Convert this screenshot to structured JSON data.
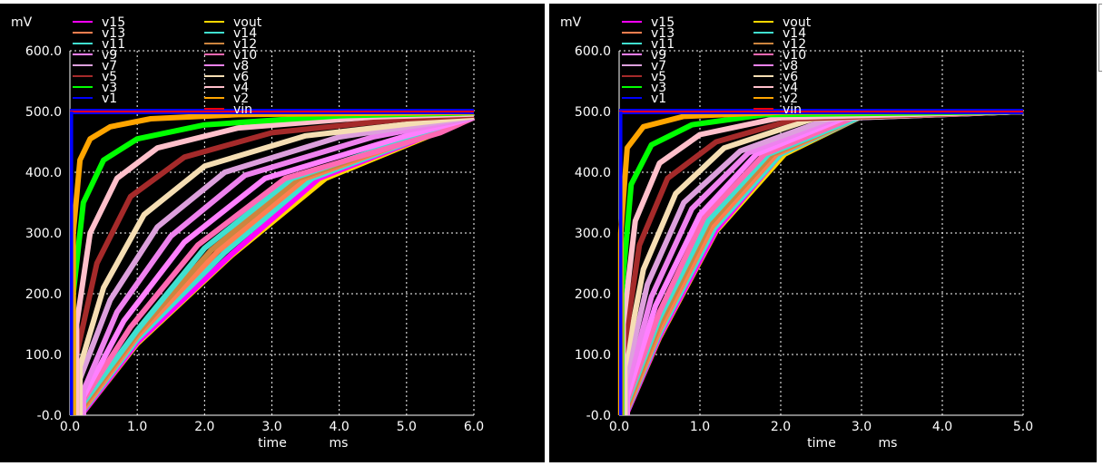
{
  "chart_data": [
    {
      "type": "line",
      "ylabel_unit": "mV",
      "xlabel": "time",
      "xunit": "ms",
      "xlim": [
        0,
        6
      ],
      "ylim": [
        0,
        600
      ],
      "xticks": [
        "0.0",
        "1.0",
        "2.0",
        "3.0",
        "4.0",
        "5.0",
        "6.0"
      ],
      "yticks": [
        "-0.0",
        "100.0",
        "200.0",
        "300.0",
        "400.0",
        "500.0",
        "600.0"
      ],
      "grid": true,
      "legend_position": "top",
      "series": [
        {
          "name": "vin",
          "values": [
            [
              0,
              500
            ],
            [
              6,
              500
            ]
          ]
        },
        {
          "name": "v1",
          "values": [
            [
              0.0,
              500
            ],
            [
              6.0,
              500
            ]
          ]
        },
        {
          "name": "v2",
          "values": [
            [
              0.05,
              300
            ],
            [
              0.15,
              420
            ],
            [
              0.3,
              455
            ],
            [
              0.6,
              475
            ],
            [
              1.2,
              488
            ],
            [
              2.5,
              495
            ],
            [
              6.0,
              499
            ]
          ]
        },
        {
          "name": "v3",
          "values": [
            [
              0.05,
              200
            ],
            [
              0.2,
              350
            ],
            [
              0.5,
              420
            ],
            [
              1.0,
              455
            ],
            [
              2.0,
              478
            ],
            [
              4.0,
              493
            ],
            [
              6.0,
              498
            ]
          ]
        },
        {
          "name": "v4",
          "values": [
            [
              0.1,
              150
            ],
            [
              0.3,
              300
            ],
            [
              0.7,
              390
            ],
            [
              1.3,
              440
            ],
            [
              2.5,
              473
            ],
            [
              4.5,
              491
            ],
            [
              6.0,
              496
            ]
          ]
        },
        {
          "name": "v5",
          "values": [
            [
              0.1,
              100
            ],
            [
              0.4,
              250
            ],
            [
              0.9,
              360
            ],
            [
              1.7,
              425
            ],
            [
              3.0,
              465
            ],
            [
              5.0,
              488
            ],
            [
              6.0,
              494
            ]
          ]
        },
        {
          "name": "v6",
          "values": [
            [
              0.15,
              80
            ],
            [
              0.5,
              210
            ],
            [
              1.1,
              330
            ],
            [
              2.0,
              410
            ],
            [
              3.5,
              460
            ],
            [
              6.0,
              492
            ]
          ]
        },
        {
          "name": "v7",
          "values": [
            [
              0.15,
              60
            ],
            [
              0.6,
              190
            ],
            [
              1.3,
              310
            ],
            [
              2.3,
              400
            ],
            [
              4.0,
              458
            ],
            [
              6.0,
              491
            ]
          ]
        },
        {
          "name": "v8",
          "values": [
            [
              0.2,
              40
            ],
            [
              0.7,
              170
            ],
            [
              1.5,
              295
            ],
            [
              2.6,
              395
            ],
            [
              4.5,
              458
            ],
            [
              6.0,
              490
            ]
          ]
        },
        {
          "name": "v9",
          "values": [
            [
              0.2,
              30
            ],
            [
              0.8,
              155
            ],
            [
              1.7,
              285
            ],
            [
              2.9,
              390
            ],
            [
              5.0,
              460
            ],
            [
              6.0,
              490
            ]
          ]
        },
        {
          "name": "v10",
          "values": [
            [
              0.2,
              25
            ],
            [
              0.9,
              145
            ],
            [
              1.9,
              280
            ],
            [
              3.2,
              390
            ],
            [
              5.5,
              465
            ],
            [
              6.0,
              490
            ]
          ]
        },
        {
          "name": "v11",
          "values": [
            [
              0.2,
              20
            ],
            [
              1.0,
              140
            ],
            [
              2.0,
              275
            ],
            [
              3.3,
              390
            ],
            [
              6.0,
              490
            ]
          ]
        },
        {
          "name": "v12",
          "values": [
            [
              0.2,
              15
            ],
            [
              1.0,
              135
            ],
            [
              2.1,
              272
            ],
            [
              3.4,
              390
            ],
            [
              6.0,
              490
            ]
          ]
        },
        {
          "name": "v13",
          "values": [
            [
              0.2,
              10
            ],
            [
              1.0,
              130
            ],
            [
              2.2,
              270
            ],
            [
              3.5,
              390
            ],
            [
              6.0,
              490
            ]
          ]
        },
        {
          "name": "v14",
          "values": [
            [
              0.2,
              8
            ],
            [
              1.0,
              125
            ],
            [
              2.3,
              268
            ],
            [
              3.6,
              390
            ],
            [
              6.0,
              490
            ]
          ]
        },
        {
          "name": "v15",
          "values": [
            [
              0.2,
              5
            ],
            [
              1.0,
              120
            ],
            [
              2.4,
              265
            ],
            [
              3.7,
              390
            ],
            [
              6.0,
              490
            ]
          ]
        },
        {
          "name": "vout",
          "values": [
            [
              0.2,
              5
            ],
            [
              1.0,
              118
            ],
            [
              2.4,
              263
            ],
            [
              3.8,
              390
            ],
            [
              6.0,
              490
            ]
          ]
        }
      ],
      "colors": {
        "v15": "#ff00ff",
        "vout": "#ffd700",
        "v13": "#ff7f50",
        "v14": "#40e0d0",
        "v11": "#40e0d0",
        "v12": "#cd853f",
        "v9": "#ff80ff",
        "v10": "#ff69b4",
        "v7": "#dda0dd",
        "v8": "#ee82ee",
        "v5": "#a52a2a",
        "v6": "#f5deb3",
        "v3": "#00ff00",
        "v4": "#ffc0cb",
        "v1": "#0000ff",
        "v2": "#ffa500",
        "vin": "#ff0000"
      }
    },
    {
      "type": "line",
      "ylabel_unit": "mV",
      "xlabel": "time",
      "xunit": "ms",
      "xlim": [
        0,
        5
      ],
      "ylim": [
        0,
        600
      ],
      "xticks": [
        "0.0",
        "1.0",
        "2.0",
        "3.0",
        "4.0",
        "5.0"
      ],
      "yticks": [
        "-0.0",
        "100.0",
        "200.0",
        "300.0",
        "400.0",
        "500.0",
        "600.0"
      ],
      "grid": true,
      "legend_position": "top",
      "series": [
        {
          "name": "vin",
          "values": [
            [
              0,
              500
            ],
            [
              5,
              500
            ]
          ]
        },
        {
          "name": "v1",
          "values": [
            [
              0.0,
              500
            ],
            [
              5.0,
              500
            ]
          ]
        },
        {
          "name": "v2",
          "values": [
            [
              0.02,
              300
            ],
            [
              0.1,
              440
            ],
            [
              0.3,
              475
            ],
            [
              0.8,
              492
            ],
            [
              2.0,
              499
            ],
            [
              5.0,
              500
            ]
          ]
        },
        {
          "name": "v3",
          "values": [
            [
              0.03,
              200
            ],
            [
              0.15,
              380
            ],
            [
              0.4,
              445
            ],
            [
              0.9,
              478
            ],
            [
              1.8,
              495
            ],
            [
              5.0,
              500
            ]
          ]
        },
        {
          "name": "v4",
          "values": [
            [
              0.05,
              150
            ],
            [
              0.2,
              320
            ],
            [
              0.5,
              415
            ],
            [
              1.0,
              462
            ],
            [
              2.0,
              490
            ],
            [
              5.0,
              500
            ]
          ]
        },
        {
          "name": "v5",
          "values": [
            [
              0.05,
              100
            ],
            [
              0.25,
              280
            ],
            [
              0.6,
              390
            ],
            [
              1.2,
              450
            ],
            [
              2.2,
              488
            ],
            [
              5.0,
              500
            ]
          ]
        },
        {
          "name": "v6",
          "values": [
            [
              0.07,
              80
            ],
            [
              0.3,
              240
            ],
            [
              0.7,
              365
            ],
            [
              1.3,
              440
            ],
            [
              2.4,
              488
            ],
            [
              5.0,
              500
            ]
          ]
        },
        {
          "name": "v7",
          "values": [
            [
              0.08,
              60
            ],
            [
              0.35,
              215
            ],
            [
              0.8,
              350
            ],
            [
              1.5,
              435
            ],
            [
              2.6,
              488
            ],
            [
              5.0,
              500
            ]
          ]
        },
        {
          "name": "v8",
          "values": [
            [
              0.09,
              40
            ],
            [
              0.4,
              195
            ],
            [
              0.9,
              340
            ],
            [
              1.6,
              432
            ],
            [
              2.7,
              489
            ],
            [
              5.0,
              500
            ]
          ]
        },
        {
          "name": "v9",
          "values": [
            [
              0.1,
              30
            ],
            [
              0.45,
              180
            ],
            [
              1.0,
              330
            ],
            [
              1.7,
              430
            ],
            [
              2.8,
              490
            ],
            [
              5.0,
              500
            ]
          ]
        },
        {
          "name": "v10",
          "values": [
            [
              0.1,
              25
            ],
            [
              0.5,
              170
            ],
            [
              1.05,
              325
            ],
            [
              1.8,
              430
            ],
            [
              2.9,
              490
            ],
            [
              5.0,
              500
            ]
          ]
        },
        {
          "name": "v11",
          "values": [
            [
              0.1,
              20
            ],
            [
              0.5,
              160
            ],
            [
              1.1,
              320
            ],
            [
              1.85,
              430
            ],
            [
              3.0,
              492
            ],
            [
              5.0,
              500
            ]
          ]
        },
        {
          "name": "v12",
          "values": [
            [
              0.1,
              15
            ],
            [
              0.5,
              150
            ],
            [
              1.12,
              315
            ],
            [
              1.9,
              430
            ],
            [
              3.0,
              492
            ],
            [
              5.0,
              500
            ]
          ]
        },
        {
          "name": "v13",
          "values": [
            [
              0.1,
              10
            ],
            [
              0.5,
              140
            ],
            [
              1.15,
              310
            ],
            [
              1.95,
              430
            ],
            [
              3.0,
              492
            ],
            [
              5.0,
              500
            ]
          ]
        },
        {
          "name": "v14",
          "values": [
            [
              0.1,
              8
            ],
            [
              0.5,
              135
            ],
            [
              1.18,
              308
            ],
            [
              2.0,
              430
            ],
            [
              3.0,
              492
            ],
            [
              5.0,
              500
            ]
          ]
        },
        {
          "name": "v15",
          "values": [
            [
              0.1,
              5
            ],
            [
              0.5,
              130
            ],
            [
              1.2,
              305
            ],
            [
              2.0,
              430
            ],
            [
              3.0,
              492
            ],
            [
              5.0,
              500
            ]
          ]
        },
        {
          "name": "vout",
          "values": [
            [
              0.1,
              5
            ],
            [
              0.5,
              128
            ],
            [
              1.2,
              303
            ],
            [
              2.05,
              430
            ],
            [
              3.0,
              492
            ],
            [
              5.0,
              500
            ]
          ]
        }
      ],
      "colors": {
        "v15": "#ff00ff",
        "vout": "#ffd700",
        "v13": "#ff7f50",
        "v14": "#40e0d0",
        "v11": "#40e0d0",
        "v12": "#cd853f",
        "v9": "#ff80ff",
        "v10": "#ff69b4",
        "v7": "#dda0dd",
        "v8": "#ee82ee",
        "v5": "#a52a2a",
        "v6": "#f5deb3",
        "v3": "#00ff00",
        "v4": "#ffc0cb",
        "v1": "#0000ff",
        "v2": "#ffa500",
        "vin": "#ff0000"
      }
    }
  ],
  "legend_order_left_column": [
    "v15",
    "v13",
    "v11",
    "v9",
    "v7",
    "v5",
    "v3",
    "v1"
  ],
  "legend_order_right_column": [
    "vout",
    "v14",
    "v12",
    "v10",
    "v8",
    "v6",
    "v4",
    "v2",
    "vin"
  ]
}
